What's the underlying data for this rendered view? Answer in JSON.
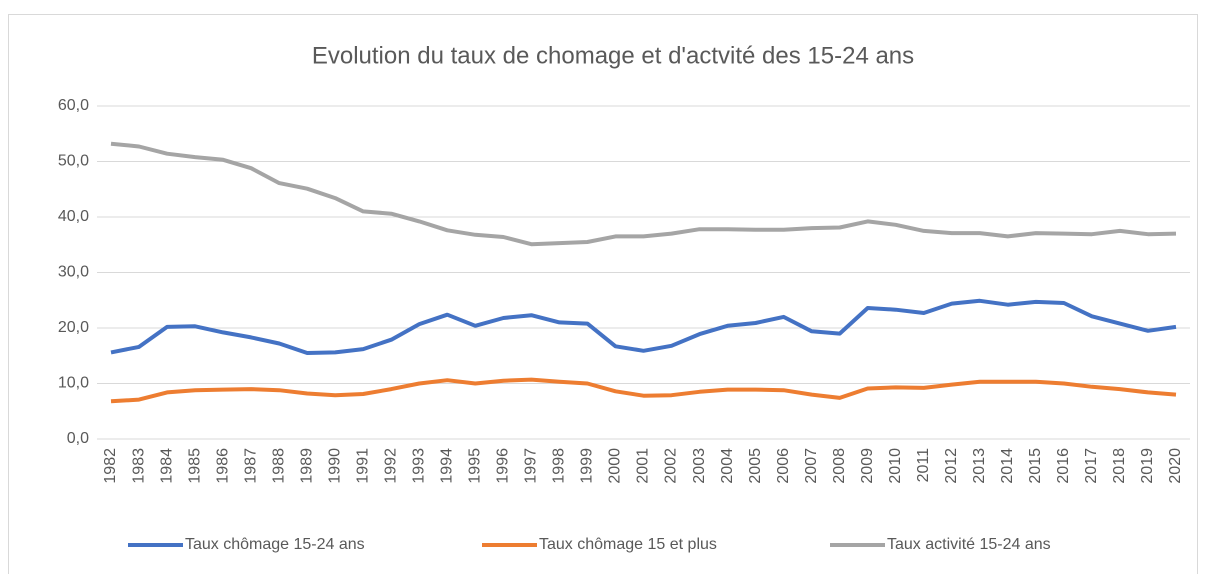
{
  "chart_data": {
    "type": "line",
    "title": "Evolution du taux de chomage et d'actvité des 15-24 ans",
    "categories": [
      "1982",
      "1983",
      "1984",
      "1985",
      "1986",
      "1987",
      "1988",
      "1989",
      "1990",
      "1991",
      "1992",
      "1993",
      "1994",
      "1995",
      "1996",
      "1997",
      "1998",
      "1999",
      "2000",
      "2001",
      "2002",
      "2003",
      "2004",
      "2005",
      "2006",
      "2007",
      "2008",
      "2009",
      "2010",
      "2011",
      "2012",
      "2013",
      "2014",
      "2015",
      "2016",
      "2017",
      "2018",
      "2019",
      "2020"
    ],
    "series": [
      {
        "name": "Taux chômage 15-24 ans",
        "color": "#4472c4",
        "values": [
          15.6,
          16.6,
          20.2,
          20.3,
          19.2,
          18.3,
          17.2,
          15.5,
          15.6,
          16.2,
          17.9,
          20.7,
          22.4,
          20.4,
          21.8,
          22.3,
          21.0,
          20.8,
          16.7,
          15.9,
          16.8,
          18.9,
          20.4,
          20.9,
          22.0,
          19.4,
          19.0,
          23.6,
          23.3,
          22.7,
          24.4,
          24.9,
          24.2,
          24.7,
          24.5,
          22.1,
          20.8,
          19.5,
          20.2
        ]
      },
      {
        "name": "Taux chômage 15 et plus",
        "color": "#ed7d31",
        "values": [
          6.8,
          7.1,
          8.4,
          8.8,
          8.9,
          9.0,
          8.8,
          8.2,
          7.9,
          8.1,
          9.0,
          10.0,
          10.6,
          10.0,
          10.5,
          10.7,
          10.3,
          10.0,
          8.6,
          7.8,
          7.9,
          8.5,
          8.9,
          8.9,
          8.8,
          8.0,
          7.4,
          9.1,
          9.3,
          9.2,
          9.8,
          10.3,
          10.3,
          10.3,
          10.0,
          9.4,
          9.0,
          8.4,
          8.0
        ]
      },
      {
        "name": "Taux activité 15-24 ans",
        "color": "#a5a5a5",
        "values": [
          53.2,
          52.7,
          51.4,
          50.8,
          50.3,
          48.8,
          46.1,
          45.1,
          43.4,
          41.0,
          40.6,
          39.2,
          37.6,
          36.8,
          36.4,
          35.1,
          35.3,
          35.5,
          36.5,
          36.5,
          37.0,
          37.8,
          37.8,
          37.7,
          37.7,
          38.0,
          38.1,
          39.2,
          38.6,
          37.5,
          37.1,
          37.1,
          36.5,
          37.1,
          37.0,
          36.9,
          37.5,
          36.9,
          37.0
        ]
      }
    ],
    "ylim": [
      0,
      60
    ],
    "yticks": [
      {
        "value": 0,
        "label": "0,0"
      },
      {
        "value": 10,
        "label": "10,0"
      },
      {
        "value": 20,
        "label": "20,0"
      },
      {
        "value": 30,
        "label": "30,0"
      },
      {
        "value": 40,
        "label": "40,0"
      },
      {
        "value": 50,
        "label": "50,0"
      },
      {
        "value": 60,
        "label": "60,0"
      }
    ],
    "grid": true,
    "legend": "bottom"
  }
}
